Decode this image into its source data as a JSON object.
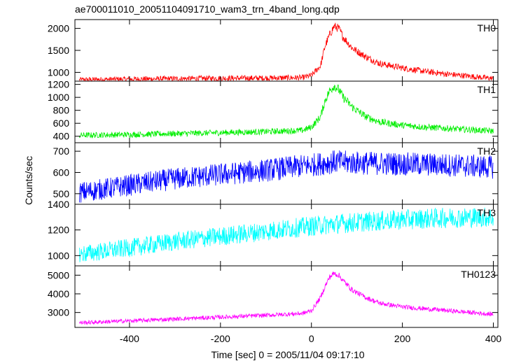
{
  "title": "ae700011010_20051104091710_wam3_trn_4band_long.qdp",
  "xlabel": "Time [sec] 0 = 2005/11/04 09:17:10",
  "ylabel": "Counts/sec",
  "chart_data": {
    "type": "line",
    "x_range": [
      -520,
      410
    ],
    "x_ticks": [
      -400,
      -200,
      0,
      200,
      400
    ],
    "panels": [
      {
        "name": "TH0",
        "color": "#ff0000",
        "ylim": [
          800,
          2200
        ],
        "y_ticks": [
          1000,
          1500,
          2000
        ],
        "series": {
          "x": [
            -510,
            -400,
            -300,
            -200,
            -100,
            -20,
            0,
            20,
            30,
            40,
            50,
            60,
            70,
            90,
            120,
            150,
            200,
            250,
            300,
            350,
            400
          ],
          "y": [
            830,
            845,
            855,
            865,
            870,
            880,
            930,
            1150,
            1600,
            1850,
            2050,
            2000,
            1800,
            1550,
            1350,
            1200,
            1100,
            1020,
            960,
            910,
            860
          ]
        }
      },
      {
        "name": "TH1",
        "color": "#00ee00",
        "ylim": [
          300,
          1250
        ],
        "y_ticks": [
          400,
          600,
          800,
          1000,
          1200
        ],
        "series": {
          "x": [
            -510,
            -400,
            -300,
            -200,
            -100,
            -20,
            0,
            20,
            30,
            40,
            50,
            60,
            70,
            90,
            120,
            150,
            200,
            250,
            300,
            350,
            400
          ],
          "y": [
            415,
            425,
            440,
            455,
            470,
            490,
            540,
            700,
            950,
            1100,
            1180,
            1120,
            1000,
            850,
            700,
            620,
            570,
            540,
            520,
            500,
            480
          ]
        }
      },
      {
        "name": "TH2",
        "color": "#0000ff",
        "ylim": [
          450,
          740
        ],
        "y_ticks": [
          500,
          600,
          700
        ],
        "series": {
          "x": [
            -510,
            -400,
            -300,
            -200,
            -100,
            0,
            50,
            100,
            200,
            300,
            400
          ],
          "y": [
            505,
            540,
            570,
            590,
            610,
            635,
            650,
            645,
            640,
            635,
            625
          ]
        }
      },
      {
        "name": "TH3",
        "color": "#00ffff",
        "ylim": [
          920,
          1400
        ],
        "y_ticks": [
          1000,
          1200,
          1400
        ],
        "series": {
          "x": [
            -510,
            -400,
            -300,
            -200,
            -100,
            0,
            100,
            200,
            300,
            400
          ],
          "y": [
            1010,
            1060,
            1110,
            1150,
            1190,
            1230,
            1260,
            1280,
            1295,
            1300
          ]
        }
      },
      {
        "name": "TH0123",
        "color": "#ff00ff",
        "ylim": [
          2200,
          5500
        ],
        "y_ticks": [
          3000,
          4000,
          5000
        ],
        "series": {
          "x": [
            -510,
            -400,
            -300,
            -200,
            -100,
            -20,
            0,
            20,
            30,
            40,
            50,
            60,
            70,
            90,
            120,
            150,
            200,
            250,
            300,
            350,
            400
          ],
          "y": [
            2450,
            2550,
            2650,
            2750,
            2850,
            2950,
            3100,
            3800,
            4400,
            4900,
            5100,
            5000,
            4700,
            4200,
            3800,
            3500,
            3300,
            3200,
            3100,
            3000,
            2900
          ]
        }
      }
    ]
  }
}
